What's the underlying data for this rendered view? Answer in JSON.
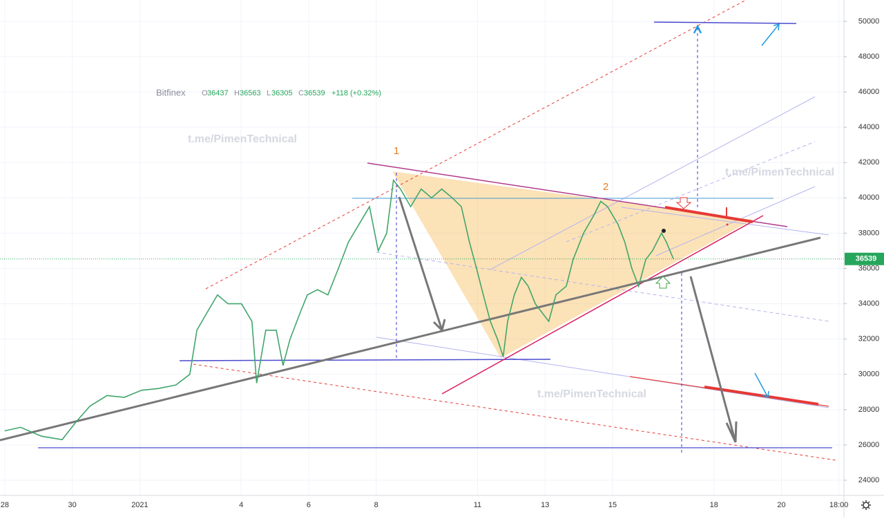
{
  "chart_data": {
    "type": "line",
    "header": {
      "source": "Bitfinex",
      "open_label": "O",
      "open": 36437,
      "high_label": "H",
      "high": 36563,
      "low_label": "L",
      "low": 36305,
      "close_label": "C",
      "close": 36539,
      "change": "+118 (+0.32%)"
    },
    "watermarks": [
      "t.me/PimenTechnical",
      "t.me/PimenTechnical",
      "t.me/PimenTechnical"
    ],
    "annotations": [
      "1",
      "2"
    ],
    "last_price": 36539,
    "x": [
      0,
      0.47,
      1.08,
      1.7,
      2.11,
      2.52,
      3.03,
      3.54,
      4.05,
      4.56,
      5.07,
      5.48,
      5.69,
      5.99,
      6.3,
      6.61,
      7.01,
      7.32,
      7.46,
      7.73,
      8.04,
      8.24,
      8.45,
      8.75,
      8.96,
      9.26,
      9.57,
      9.88,
      10.18,
      10.49,
      10.8,
      11.06,
      11.31,
      11.51,
      11.72,
      12.02,
      12.33,
      12.64,
      12.94,
      13.25,
      13.52,
      13.76,
      13.97,
      14.17,
      14.38,
      14.59,
      14.76,
      14.89,
      15.09,
      15.3,
      15.5,
      15.71,
      15.91,
      16.11,
      16.32,
      16.63,
      16.83,
      17.14,
      17.44,
      17.65,
      17.85,
      18.16,
      18.36,
      18.57,
      18.77,
      18.98,
      19.18,
      19.45,
      19.59,
      19.8
    ],
    "series": [
      {
        "color": "#3fa56a",
        "values": [
          26800,
          27000,
          26500,
          26300,
          27300,
          28200,
          28800,
          28700,
          29100,
          29200,
          29400,
          30000,
          32500,
          33500,
          34500,
          34000,
          34000,
          33000,
          29500,
          32500,
          32500,
          30500,
          32000,
          33500,
          34500,
          34800,
          34500,
          36000,
          37500,
          38500,
          39500,
          37000,
          38000,
          41000,
          40500,
          39500,
          40500,
          40000,
          40500,
          40000,
          39500,
          37500,
          36000,
          34500,
          33000,
          32000,
          31000,
          33000,
          34500,
          35500,
          35000,
          34000,
          33500,
          33000,
          34500,
          35000,
          36500,
          38000,
          39000,
          39800,
          39500,
          38500,
          37500,
          36000,
          35000,
          36500,
          37000,
          38000,
          37500,
          36539
        ]
      }
    ],
    "xlim": [
      -0.14,
      24.85
    ],
    "xticks": [
      {
        "value": 0,
        "label": "28"
      },
      {
        "value": 2,
        "label": "30"
      },
      {
        "value": 4,
        "label": "2021"
      },
      {
        "value": 7,
        "label": "4"
      },
      {
        "value": 9,
        "label": "6"
      },
      {
        "value": 11,
        "label": "8"
      },
      {
        "value": 14,
        "label": "11"
      },
      {
        "value": 16,
        "label": "13"
      },
      {
        "value": 18,
        "label": "15"
      },
      {
        "value": 21,
        "label": "18"
      },
      {
        "value": 23,
        "label": "20"
      },
      {
        "value": 24.7,
        "label": "18:00"
      }
    ],
    "ylim": [
      23140,
      51210
    ],
    "yticks": [
      24000,
      26000,
      28000,
      30000,
      32000,
      34000,
      36000,
      38000,
      40000,
      42000,
      44000,
      46000,
      48000,
      50000
    ],
    "grid": true
  }
}
